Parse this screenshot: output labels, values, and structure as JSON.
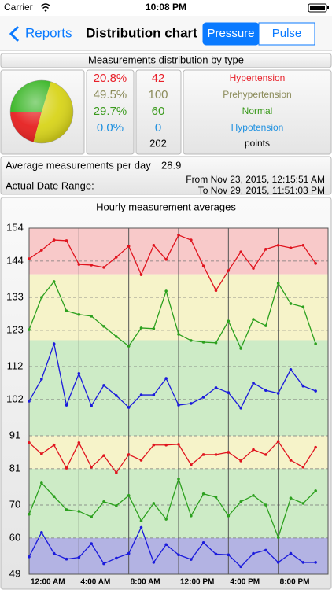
{
  "status_bar": {
    "carrier": "Carrier",
    "time": "10:08 PM"
  },
  "nav": {
    "back": "Reports",
    "title": "Distribution chart",
    "segments": [
      "Pressure",
      "Pulse"
    ],
    "selected": 0
  },
  "summary": {
    "title": "Measurements distribution by type",
    "average_label": "Average measurements per day",
    "average": 28.9,
    "range_label": "Actual Date Range:",
    "range_from": "From Nov 23, 2015, 12:15:51 AM",
    "range_to": "To Nov 29, 2015, 11:51:03 PM"
  },
  "chart_data": [
    {
      "type": "pie",
      "categories": [
        "Hypertension",
        "Prehypertension",
        "Normal",
        "Hypotension"
      ],
      "values": [
        20.8,
        49.5,
        29.7,
        0
      ],
      "value_labels": [
        "20.8%",
        "49.5%",
        "29.7%",
        "0.0%"
      ],
      "colors": [
        "#e62020",
        "#d8d41a",
        "#36b422",
        "#1e90e0"
      ],
      "label_colors": [
        "#e8202a",
        "#8b8b5a",
        "#3a9a1c",
        "#1e90e0"
      ],
      "counts": [
        42,
        100,
        60,
        0
      ],
      "total": 202,
      "total_label": "points"
    },
    {
      "type": "line",
      "title": "Hourly measurement averages",
      "categories": [
        "12:00 AM",
        null,
        null,
        null,
        "4:00 AM",
        null,
        null,
        null,
        "8:00 AM",
        null,
        null,
        null,
        "12:00 PM",
        null,
        null,
        null,
        "4:00 PM",
        null,
        null,
        null,
        "8:00 PM",
        null,
        null,
        null
      ],
      "ylim": [
        49,
        154
      ],
      "yticks": [
        154,
        144,
        133,
        123,
        112,
        102,
        91,
        81,
        70,
        60,
        49
      ],
      "grid": true,
      "bands": [
        {
          "from": 140,
          "to": 154,
          "color": "#f8c9c9"
        },
        {
          "from": 120,
          "to": 140,
          "color": "#f6f3c9"
        },
        {
          "from": 91,
          "to": 120,
          "color": "#cdebc6"
        },
        {
          "from": 81,
          "to": 91,
          "color": "#f6f3c9"
        },
        {
          "from": 60,
          "to": 81,
          "color": "#cdebc6"
        },
        {
          "from": 49,
          "to": 60,
          "color": "#b3b3e3"
        }
      ],
      "series": [
        {
          "color": "#e0141e",
          "values": [
            144.7,
            147.3,
            150.4,
            150.2,
            143.0,
            142.8,
            142.1,
            145.2,
            148.5,
            139.9,
            148.8,
            144.5,
            151.9,
            150.4,
            142.5,
            135.1,
            141.1,
            146.8,
            141.8,
            147.6,
            148.8,
            148.0,
            148.8,
            143.3
          ]
        },
        {
          "color": "#2ca01e",
          "values": [
            123.2,
            133.0,
            137.8,
            128.9,
            127.8,
            127.3,
            124.2,
            121.1,
            118.2,
            123.7,
            123.5,
            134.9,
            121.8,
            119.9,
            119.4,
            119.2,
            125.8,
            117.5,
            126.3,
            124.4,
            137.3,
            131.1,
            130.1,
            118.9
          ]
        },
        {
          "color": "#1a1adc",
          "values": [
            101.5,
            108.2,
            118.9,
            100.3,
            109.9,
            100.1,
            106.3,
            103.2,
            99.6,
            103.4,
            103.4,
            108.4,
            100.3,
            100.8,
            102.7,
            105.6,
            104.1,
            99.4,
            107.0,
            104.8,
            103.9,
            111.1,
            106.1,
            104.6
          ]
        },
        {
          "color": "#e0141e",
          "values": [
            88.9,
            85.5,
            88.2,
            81.2,
            88.9,
            81.5,
            85.0,
            79.8,
            85.3,
            83.6,
            88.2,
            88.2,
            88.4,
            82.2,
            85.3,
            85.3,
            86.0,
            83.4,
            86.8,
            85.3,
            89.3,
            83.6,
            81.5,
            87.5
          ]
        },
        {
          "color": "#2ca01e",
          "values": [
            67.2,
            76.7,
            72.6,
            68.6,
            68.1,
            66.4,
            71.0,
            69.8,
            72.9,
            65.2,
            70.5,
            65.7,
            77.9,
            66.7,
            73.4,
            72.4,
            66.7,
            71.0,
            72.9,
            70.0,
            60.2,
            72.1,
            70.5,
            74.3
          ]
        },
        {
          "color": "#1a1adc",
          "values": [
            54.3,
            61.7,
            55.3,
            53.6,
            54.1,
            58.3,
            52.2,
            53.9,
            55.3,
            63.2,
            52.6,
            58.0,
            54.9,
            53.5,
            58.6,
            55.1,
            54.9,
            51.3,
            55.3,
            56.3,
            52.6,
            55.3,
            52.6,
            52.6
          ]
        }
      ]
    }
  ]
}
